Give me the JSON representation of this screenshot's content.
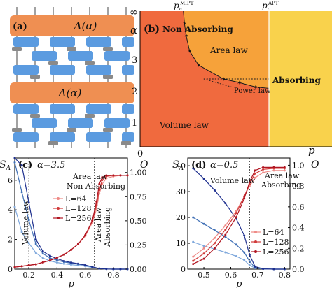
{
  "colors": {
    "gate_orange": "#ef8f52",
    "gate_blue": "#5b9be0",
    "measure_gray": "#8a8a8a",
    "volume_red": "#f06a3e",
    "area_orange": "#f6a23a",
    "absorbing_yellow": "#f9d24c",
    "entropy_blue": "#1e2f8e",
    "order_red": "#b01521",
    "light_blue": "#7fa8dc",
    "mid_blue": "#3f6fb5",
    "light_red": "#ee8a86",
    "mid_red": "#d03a3a"
  },
  "panel_a": {
    "tag": "(a)",
    "layers": [
      {
        "label": "A(α)"
      },
      {
        "label": "A(α)"
      }
    ]
  },
  "chart_data": [
    {
      "panel": "(b)",
      "type": "area",
      "xlabel": "p",
      "ylabel": "α",
      "x_tick_left": "0",
      "x_top_labels": [
        "p_c^MIPT",
        "p_c^APT"
      ],
      "y_ticks": [
        {
          "label": "∞",
          "value": "inf"
        },
        {
          "label": "3",
          "value": 3
        },
        {
          "label": "2",
          "value": 2
        },
        {
          "label": "1",
          "value": 1
        }
      ],
      "regions": [
        "Non Absorbing",
        "Area law",
        "Absorbing",
        "Power law",
        "Volume law"
      ],
      "boundary_points": [
        {
          "p": 0.258,
          "alpha": 3.55
        },
        {
          "p": 0.268,
          "alpha": 3.2
        },
        {
          "p": 0.288,
          "alpha": 2.75
        },
        {
          "p": 0.34,
          "alpha": 2.35
        },
        {
          "p": 0.485,
          "alpha": 1.95
        },
        {
          "p": 0.575,
          "alpha": 1.85
        },
        {
          "p": 0.67,
          "alpha": 1.72
        }
      ],
      "p_c_APT": 0.75
    },
    {
      "panel": "(c)",
      "type": "line",
      "title": "α=3.5",
      "xlabel": "p",
      "ylabel_left": "S_A",
      "ylabel_right": "O",
      "x_ticks": [
        "0.2",
        "0.4",
        "0.6",
        "0.8"
      ],
      "xlim": [
        0.1,
        0.9
      ],
      "left_ticks": [
        "0",
        "2",
        "4",
        "6"
      ],
      "left_ylim": [
        0,
        7.5
      ],
      "right_ticks": [
        "0.00",
        "0.25",
        "0.50",
        "0.75",
        "1.00"
      ],
      "right_ylim": [
        0,
        1.15
      ],
      "vertical_lines": [
        0.2,
        0.665
      ],
      "annotations": [
        "Area law",
        "Non Absorbing",
        "Volume law",
        "Area law",
        "Absorbing"
      ],
      "legend": [
        "L=64",
        "L=128",
        "L=256"
      ],
      "entropy_series": [
        {
          "name": "L=64",
          "x": [
            0.1,
            0.15,
            0.2,
            0.25,
            0.3,
            0.35,
            0.4,
            0.45,
            0.5,
            0.55,
            0.6,
            0.65,
            0.7,
            0.75,
            0.8,
            0.85,
            0.9
          ],
          "y": [
            4.2,
            2.5,
            1.75,
            1.1,
            0.75,
            0.55,
            0.45,
            0.36,
            0.3,
            0.25,
            0.2,
            0.12,
            0.04,
            0.01,
            0,
            0,
            0
          ]
        },
        {
          "name": "L=128",
          "x": [
            0.1,
            0.15,
            0.2,
            0.25,
            0.3,
            0.35,
            0.4,
            0.45,
            0.5,
            0.55,
            0.6,
            0.65,
            0.7,
            0.75,
            0.8,
            0.85,
            0.9
          ],
          "y": [
            7.2,
            5.2,
            3.3,
            1.7,
            1.05,
            0.75,
            0.6,
            0.48,
            0.4,
            0.33,
            0.26,
            0.15,
            0.04,
            0.01,
            0,
            0,
            0
          ]
        },
        {
          "name": "L=256",
          "x": [
            0.1,
            0.15,
            0.2,
            0.25,
            0.3,
            0.35,
            0.4,
            0.45,
            0.5,
            0.55,
            0.6,
            0.65,
            0.7,
            0.75,
            0.8,
            0.85,
            0.9
          ],
          "y": [
            7.5,
            7.0,
            4.5,
            2.0,
            1.2,
            0.9,
            0.7,
            0.55,
            0.45,
            0.37,
            0.28,
            0.16,
            0.04,
            0.01,
            0,
            0,
            0
          ]
        }
      ],
      "order_series": [
        {
          "name": "L=64",
          "x": [
            0.1,
            0.15,
            0.2,
            0.25,
            0.3,
            0.35,
            0.4,
            0.45,
            0.5,
            0.55,
            0.6,
            0.65,
            0.68,
            0.7,
            0.72,
            0.75,
            0.8,
            0.85,
            0.9
          ],
          "y": [
            0.02,
            0.03,
            0.04,
            0.05,
            0.07,
            0.09,
            0.12,
            0.15,
            0.2,
            0.26,
            0.34,
            0.48,
            0.62,
            0.78,
            0.88,
            0.94,
            0.96,
            0.97,
            0.97
          ]
        },
        {
          "name": "L=128",
          "x": [
            0.1,
            0.15,
            0.2,
            0.25,
            0.3,
            0.35,
            0.4,
            0.45,
            0.5,
            0.55,
            0.6,
            0.65,
            0.68,
            0.7,
            0.72,
            0.75,
            0.8,
            0.85,
            0.9
          ],
          "y": [
            0.02,
            0.03,
            0.04,
            0.05,
            0.07,
            0.09,
            0.12,
            0.15,
            0.2,
            0.26,
            0.35,
            0.5,
            0.66,
            0.82,
            0.92,
            0.96,
            0.97,
            0.97,
            0.97
          ]
        },
        {
          "name": "L=256",
          "x": [
            0.1,
            0.15,
            0.2,
            0.25,
            0.3,
            0.35,
            0.4,
            0.45,
            0.5,
            0.55,
            0.6,
            0.65,
            0.68,
            0.7,
            0.72,
            0.75,
            0.8,
            0.85,
            0.9
          ],
          "y": [
            0.02,
            0.03,
            0.04,
            0.05,
            0.07,
            0.09,
            0.12,
            0.15,
            0.2,
            0.26,
            0.35,
            0.5,
            0.7,
            0.88,
            0.95,
            0.97,
            0.97,
            0.97,
            0.97
          ]
        }
      ]
    },
    {
      "panel": "(d)",
      "type": "line",
      "title": "α=0.5",
      "xlabel": "p",
      "ylabel_left": "S_A",
      "ylabel_right": "O",
      "x_ticks": [
        "0.5",
        "0.6",
        "0.7",
        "0.8"
      ],
      "xlim": [
        0.44,
        0.82
      ],
      "left_ticks": [
        "0",
        "10",
        "20",
        "30",
        "40"
      ],
      "left_ylim": [
        0,
        43
      ],
      "right_ticks": [
        "0.0",
        "0.2",
        "0.4",
        "0.6",
        "0.8",
        "1.0"
      ],
      "right_ylim": [
        0,
        1.07
      ],
      "vertical_lines": [
        0.67
      ],
      "annotations": [
        "Volume law",
        "Area law",
        "Absorbing"
      ],
      "legend": [
        "L=64",
        "L=128",
        "L=256"
      ],
      "entropy_series": [
        {
          "name": "L=64",
          "x": [
            0.46,
            0.5,
            0.54,
            0.58,
            0.62,
            0.65,
            0.67,
            0.69,
            0.72,
            0.76,
            0.8
          ],
          "y": [
            10.5,
            9.0,
            7.8,
            6.5,
            5.0,
            3.5,
            1.5,
            0.4,
            0.1,
            0,
            0
          ]
        },
        {
          "name": "L=128",
          "x": [
            0.46,
            0.5,
            0.54,
            0.58,
            0.62,
            0.65,
            0.67,
            0.69,
            0.72,
            0.76,
            0.8
          ],
          "y": [
            20.0,
            17.5,
            15.0,
            12.5,
            9.5,
            6.5,
            3.0,
            0.6,
            0.1,
            0,
            0
          ]
        },
        {
          "name": "L=256",
          "x": [
            0.46,
            0.5,
            0.54,
            0.58,
            0.62,
            0.65,
            0.67,
            0.69,
            0.72,
            0.76,
            0.8
          ],
          "y": [
            39.0,
            35.0,
            30.5,
            25.5,
            19.5,
            13.0,
            5.5,
            1.0,
            0.1,
            0,
            0
          ]
        }
      ],
      "order_series": [
        {
          "name": "L=64",
          "x": [
            0.46,
            0.5,
            0.54,
            0.58,
            0.62,
            0.65,
            0.67,
            0.69,
            0.72,
            0.76,
            0.8
          ],
          "y": [
            0.12,
            0.2,
            0.3,
            0.42,
            0.56,
            0.7,
            0.8,
            0.88,
            0.93,
            0.95,
            0.95
          ]
        },
        {
          "name": "L=128",
          "x": [
            0.46,
            0.5,
            0.54,
            0.58,
            0.62,
            0.65,
            0.67,
            0.69,
            0.72,
            0.76,
            0.8
          ],
          "y": [
            0.08,
            0.15,
            0.25,
            0.38,
            0.54,
            0.7,
            0.82,
            0.92,
            0.96,
            0.97,
            0.97
          ]
        },
        {
          "name": "L=256",
          "x": [
            0.46,
            0.5,
            0.54,
            0.58,
            0.62,
            0.65,
            0.67,
            0.69,
            0.72,
            0.76,
            0.8
          ],
          "y": [
            0.05,
            0.1,
            0.2,
            0.33,
            0.5,
            0.68,
            0.84,
            0.95,
            0.98,
            0.98,
            0.98
          ]
        }
      ]
    }
  ]
}
